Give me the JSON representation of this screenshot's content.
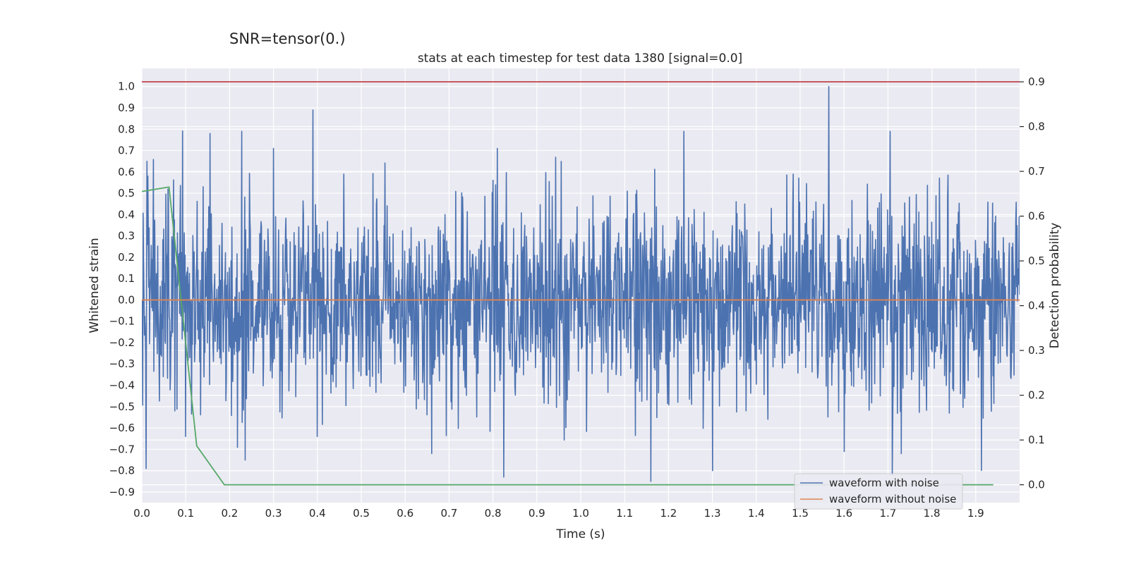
{
  "chart_data": {
    "type": "line",
    "suptitle": "SNR=tensor(0.)",
    "title": "stats at each timestep for test data 1380 [signal=0.0]",
    "xlabel": "Time (s)",
    "ylabel": "Whitened strain",
    "y2label": "Detection probability",
    "xlim": [
      0.0,
      2.0
    ],
    "ylim": [
      -0.95,
      1.085
    ],
    "y2lim": [
      -0.04,
      0.93
    ],
    "xticks": [
      0.0,
      0.1,
      0.2,
      0.3,
      0.4,
      0.5,
      0.6,
      0.7,
      0.8,
      0.9,
      1.0,
      1.1,
      1.2,
      1.3,
      1.4,
      1.5,
      1.6,
      1.7,
      1.8,
      1.9
    ],
    "xtick_labels": [
      "0.0",
      "0.1",
      "0.2",
      "0.3",
      "0.4",
      "0.5",
      "0.6",
      "0.7",
      "0.8",
      "0.9",
      "1.0",
      "1.1",
      "1.2",
      "1.3",
      "1.4",
      "1.5",
      "1.6",
      "1.7",
      "1.8",
      "1.9"
    ],
    "yticks": [
      1.0,
      0.9,
      0.8,
      0.7,
      0.6,
      0.5,
      0.4,
      0.3,
      0.2,
      0.1,
      0.0,
      -0.1,
      -0.2,
      -0.3,
      -0.4,
      -0.5,
      -0.6,
      -0.7,
      -0.8,
      -0.9
    ],
    "ytick_labels": [
      "1.0",
      "0.9",
      "0.8",
      "0.7",
      "0.6",
      "0.5",
      "0.4",
      "0.3",
      "0.2",
      "0.1",
      "0.0",
      "−0.1",
      "−0.2",
      "−0.3",
      "−0.4",
      "−0.5",
      "−0.6",
      "−0.7",
      "−0.8",
      "−0.9"
    ],
    "y2ticks": [
      0.9,
      0.8,
      0.7,
      0.6,
      0.5,
      0.4,
      0.3,
      0.2,
      0.1,
      0.0
    ],
    "y2tick_labels": [
      "0.9",
      "0.8",
      "0.7",
      "0.6",
      "0.5",
      "0.4",
      "0.3",
      "0.2",
      "0.1",
      "0.0"
    ],
    "grid": true,
    "legend_position": "bottom-right",
    "series": [
      {
        "name": "waveform with noise",
        "color": "#4c72b0",
        "axis": "left",
        "noise": {
          "samples": 2048,
          "std": 0.24,
          "seed": 1380,
          "x_end": 2.0
        },
        "peaks": [
          {
            "x": 0.01,
            "y": -0.79
          },
          {
            "x": 0.06,
            "y": 0.52
          },
          {
            "x": 0.1,
            "y": 0.6
          },
          {
            "x": 0.1,
            "y": -0.64
          },
          {
            "x": 0.155,
            "y": 0.78
          },
          {
            "x": 0.235,
            "y": -0.75
          },
          {
            "x": 0.3,
            "y": 0.71
          },
          {
            "x": 0.39,
            "y": 0.89
          },
          {
            "x": 0.4,
            "y": -0.64
          },
          {
            "x": 0.66,
            "y": -0.72
          },
          {
            "x": 0.81,
            "y": 0.71
          },
          {
            "x": 0.825,
            "y": -0.83
          },
          {
            "x": 1.16,
            "y": -0.85
          },
          {
            "x": 1.235,
            "y": 0.79
          },
          {
            "x": 1.3,
            "y": -0.8
          },
          {
            "x": 1.565,
            "y": 1.0
          },
          {
            "x": 1.6,
            "y": -0.71
          },
          {
            "x": 1.705,
            "y": 0.79
          },
          {
            "x": 1.71,
            "y": -0.82
          },
          {
            "x": 1.73,
            "y": -0.72
          }
        ]
      },
      {
        "name": "waveform without noise",
        "color": "#dd8452",
        "axis": "left",
        "x": [
          0.0,
          2.0
        ],
        "y": [
          0.0,
          0.0
        ]
      },
      {
        "name": "detection probability",
        "color": "#55a868",
        "axis": "right",
        "x": [
          0.0,
          0.062,
          0.125,
          0.188,
          1.94
        ],
        "y": [
          0.655,
          0.665,
          0.087,
          0.0,
          0.0
        ]
      },
      {
        "name": "threshold",
        "color": "#c44e52",
        "axis": "right",
        "x": [
          0.0,
          2.0
        ],
        "y": [
          0.9,
          0.9
        ]
      }
    ],
    "legend": [
      {
        "label": "waveform with noise",
        "color": "#4c72b0"
      },
      {
        "label": "waveform without noise",
        "color": "#dd8452"
      }
    ]
  },
  "colors": {
    "plot_background": "#eaeaf2",
    "grid": "#ffffff",
    "text": "#262626"
  }
}
